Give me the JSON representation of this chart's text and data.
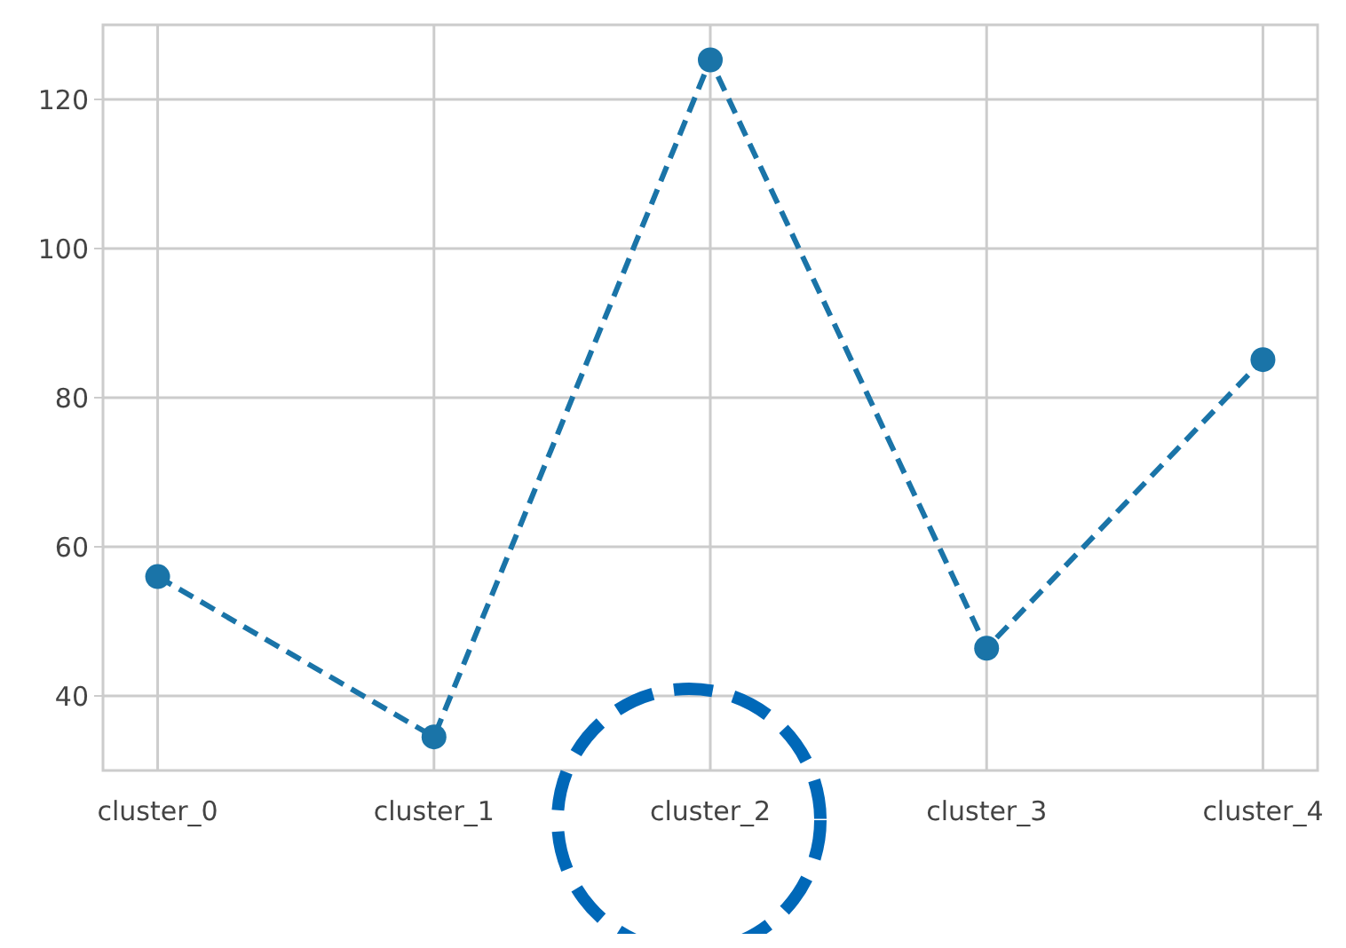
{
  "chart_data": {
    "type": "line",
    "categories": [
      "cluster_0",
      "cluster_1",
      "cluster_2",
      "cluster_3",
      "cluster_4"
    ],
    "series": [
      {
        "color": "#1a74a8",
        "values": [
          56,
          34.5,
          125.3,
          46.4,
          85.1
        ]
      }
    ],
    "ylim": [
      30,
      130
    ],
    "yticks": [
      40,
      60,
      80,
      100,
      120
    ],
    "grid": true,
    "marker": "circle",
    "line_style": "dashed"
  }
}
